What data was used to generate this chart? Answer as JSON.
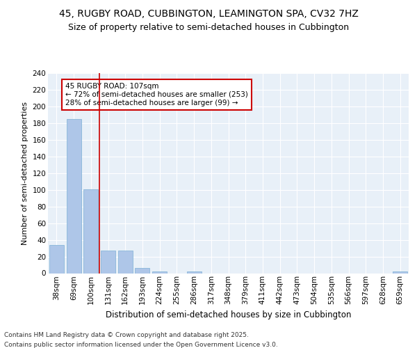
{
  "title1": "45, RUGBY ROAD, CUBBINGTON, LEAMINGTON SPA, CV32 7HZ",
  "title2": "Size of property relative to semi-detached houses in Cubbington",
  "xlabel": "Distribution of semi-detached houses by size in Cubbington",
  "ylabel": "Number of semi-detached properties",
  "categories": [
    "38sqm",
    "69sqm",
    "100sqm",
    "131sqm",
    "162sqm",
    "193sqm",
    "224sqm",
    "255sqm",
    "286sqm",
    "317sqm",
    "348sqm",
    "379sqm",
    "411sqm",
    "442sqm",
    "473sqm",
    "504sqm",
    "535sqm",
    "566sqm",
    "597sqm",
    "628sqm",
    "659sqm"
  ],
  "values": [
    34,
    185,
    101,
    27,
    27,
    6,
    2,
    0,
    2,
    0,
    0,
    0,
    0,
    0,
    0,
    0,
    0,
    0,
    0,
    0,
    2
  ],
  "bar_color": "#aec6e8",
  "bar_edge_color": "#7bafd4",
  "vline_x": 2.5,
  "vline_color": "#cc0000",
  "annotation_text": "45 RUGBY ROAD: 107sqm\n← 72% of semi-detached houses are smaller (253)\n28% of semi-detached houses are larger (99) →",
  "annotation_box_color": "#cc0000",
  "footer1": "Contains HM Land Registry data © Crown copyright and database right 2025.",
  "footer2": "Contains public sector information licensed under the Open Government Licence v3.0.",
  "ylim": [
    0,
    240
  ],
  "yticks": [
    0,
    20,
    40,
    60,
    80,
    100,
    120,
    140,
    160,
    180,
    200,
    220,
    240
  ],
  "bg_color": "#e8f0f8",
  "title1_fontsize": 10,
  "title2_fontsize": 9,
  "axis_fontsize": 7.5,
  "ylabel_fontsize": 8,
  "xlabel_fontsize": 8.5,
  "annotation_fontsize": 7.5,
  "footer_fontsize": 6.5
}
